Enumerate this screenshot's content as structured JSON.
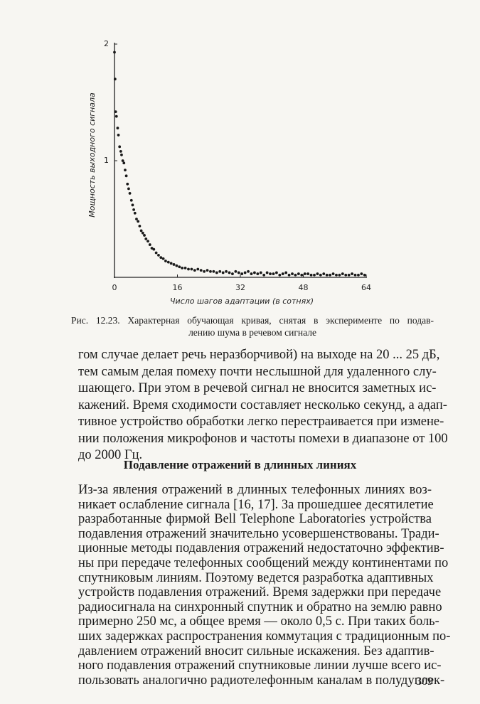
{
  "chart_data": {
    "type": "scatter",
    "y_label": "Мощность выходного сигнала",
    "x_label": "Число шагов адаптации (в сотнях)",
    "color": "#1a1a1a",
    "xlim": [
      0,
      64
    ],
    "xticks": [
      0,
      16,
      32,
      48,
      64
    ],
    "ylim": [
      0,
      2
    ],
    "yticks": [
      1,
      2
    ],
    "x": [
      0,
      0.15,
      0.3,
      0.5,
      0.8,
      1.0,
      1.3,
      1.6,
      1.8,
      2.1,
      2.4,
      2.7,
      3.0,
      3.3,
      3.6,
      3.9,
      4.3,
      4.6,
      4.9,
      5.2,
      5.6,
      6.0,
      6.4,
      6.8,
      7.2,
      7.6,
      8.0,
      8.5,
      9.0,
      9.5,
      10.0,
      10.6,
      11.2,
      11.8,
      12.4,
      13.0,
      13.7,
      14.4,
      15.1,
      15.8,
      16.5,
      17.2,
      18.0,
      18.8,
      19.6,
      20.4,
      21.2,
      22.0,
      22.8,
      23.6,
      24.4,
      25.2,
      26.0,
      26.8,
      27.6,
      28.4,
      29.2,
      30.0,
      30.8,
      31.6,
      32.4,
      33.2,
      34.0,
      34.8,
      35.6,
      36.4,
      37.2,
      38.0,
      38.8,
      39.6,
      40.4,
      41.2,
      42.0,
      42.8,
      43.6,
      44.4,
      45.2,
      46.0,
      46.8,
      47.6,
      48.4,
      49.2,
      50.0,
      50.8,
      51.6,
      52.4,
      53.2,
      54.0,
      54.8,
      55.6,
      56.4,
      57.2,
      58.0,
      58.8,
      59.6,
      60.4,
      61.2,
      62.0,
      62.8,
      63.6
    ],
    "values": [
      1.93,
      1.7,
      1.42,
      1.38,
      1.28,
      1.22,
      1.12,
      1.08,
      1.05,
      1.0,
      0.98,
      0.92,
      0.87,
      0.8,
      0.76,
      0.72,
      0.66,
      0.62,
      0.58,
      0.55,
      0.5,
      0.48,
      0.44,
      0.4,
      0.38,
      0.36,
      0.33,
      0.31,
      0.28,
      0.25,
      0.24,
      0.21,
      0.19,
      0.17,
      0.16,
      0.14,
      0.13,
      0.12,
      0.11,
      0.1,
      0.09,
      0.08,
      0.08,
      0.07,
      0.07,
      0.06,
      0.07,
      0.06,
      0.05,
      0.06,
      0.05,
      0.05,
      0.04,
      0.05,
      0.04,
      0.05,
      0.04,
      0.03,
      0.05,
      0.04,
      0.03,
      0.04,
      0.05,
      0.03,
      0.04,
      0.03,
      0.04,
      0.02,
      0.04,
      0.03,
      0.03,
      0.04,
      0.02,
      0.03,
      0.04,
      0.02,
      0.03,
      0.02,
      0.03,
      0.02,
      0.03,
      0.03,
      0.02,
      0.02,
      0.03,
      0.02,
      0.03,
      0.02,
      0.02,
      0.03,
      0.02,
      0.02,
      0.03,
      0.02,
      0.02,
      0.03,
      0.02,
      0.02,
      0.03,
      0.02
    ]
  },
  "caption": {
    "lines": [
      "Рис. 12.23. Характерная обучающая кривая, снятая в эксперименте по подав-",
      "лению шума в речевом сигнале"
    ]
  },
  "body": {
    "paragraph_1": [
      "гом случае делает речь неразборчивой) на выходе на 20 ... 25 дБ,",
      "тем самым делая помеху почти неслышной для удаленного слу-",
      "шающего. При этом в речевой сигнал не вносится заметных ис-",
      "кажений. Время сходимости составляет несколько секунд, а адап-",
      "тивное устройство обработки легко перестраивается при измене-",
      "нии положения микрофонов и частоты помехи в диапазоне от 100",
      "до 2000 Гц."
    ],
    "heading": "Подавление отражений в длинных линиях",
    "paragraph_2": [
      "Из-за явления отражений в длинных телефонных линиях воз-",
      "никает ослабление сигнала [16, 17]. За прошедшее десятилетие",
      "разработанные фирмой Bell Telephone Laboratories устройства",
      "подавления отражений значительно усовершенствованы. Тради-",
      "ционные методы подавления отражений недостаточно эффектив-",
      "ны при передаче телефонных сообщений между континентами по",
      "спутниковым линиям. Поэтому ведется разработка адаптивных",
      "устройств подавления отражений. Время задержки при передаче",
      "радиосигнала на синхронный спутник и обратно на землю равно",
      "примерно 250 мс, а общее время — около 0,5 с. При таких боль-",
      "ших задержках распространения коммутация с традиционным по-",
      "давлением отражений вносит сильные искажения. Без адаптив-",
      "ного подавления отражений спутниковые линии лучше всего ис-",
      "пользовать аналогично радиотелефонным каналам в полудуплек-"
    ]
  },
  "page_number": "309"
}
